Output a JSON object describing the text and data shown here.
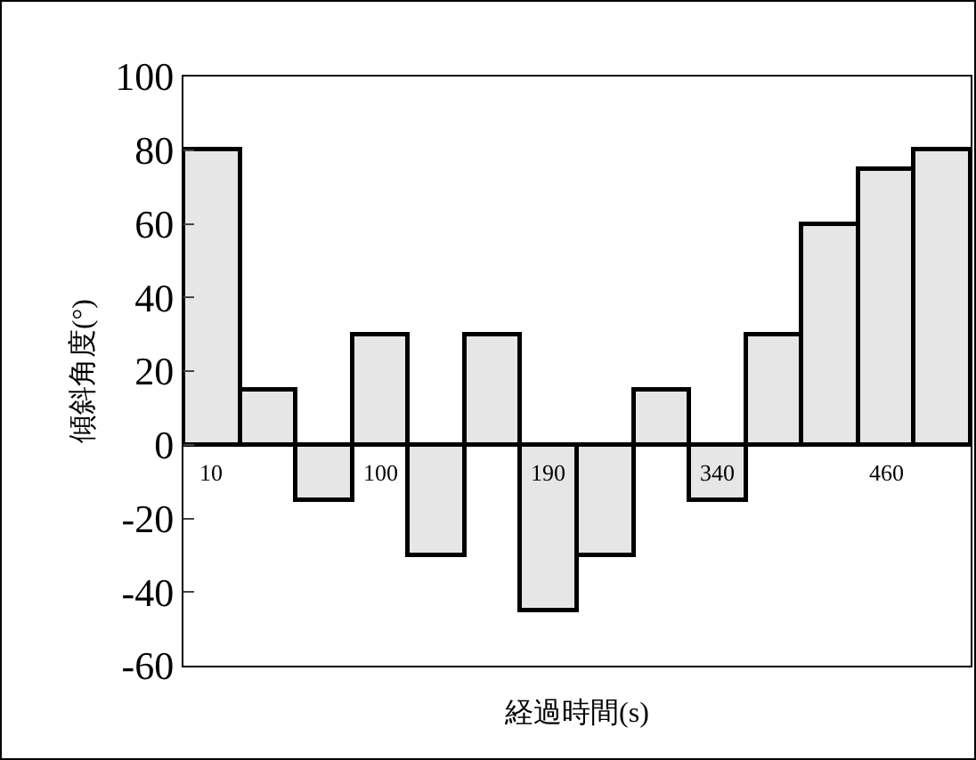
{
  "chart_data": {
    "type": "bar",
    "xlabel": "経過時間(s)",
    "ylabel": "傾斜角度(°)",
    "categories": [
      "10",
      null,
      null,
      "100",
      null,
      null,
      "190",
      null,
      null,
      "340",
      null,
      null,
      "460",
      null
    ],
    "values": [
      80,
      15,
      -15,
      30,
      -30,
      30,
      -45,
      -30,
      15,
      -15,
      30,
      60,
      75,
      80
    ],
    "color": "#e6e6e6",
    "ylim": [
      -60,
      100
    ],
    "yticks": [
      -60,
      -40,
      -20,
      0,
      20,
      40,
      60,
      80,
      100
    ],
    "grid": false
  }
}
